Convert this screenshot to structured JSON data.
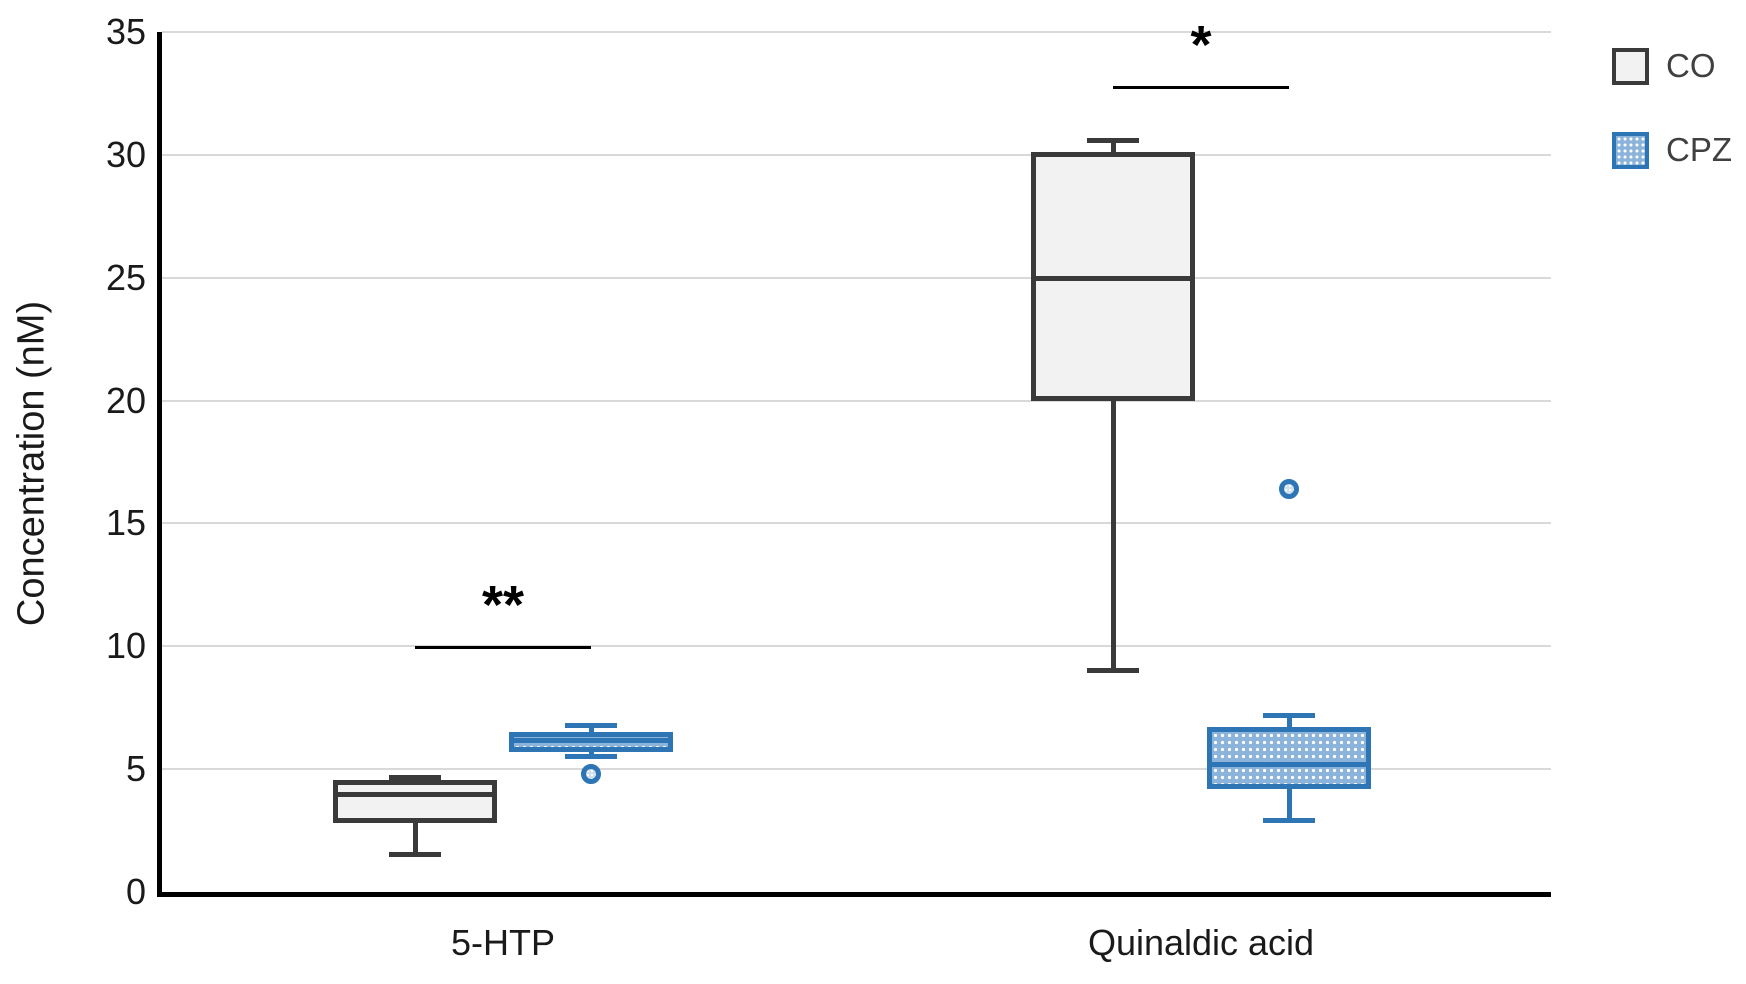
{
  "figure": {
    "colors": {
      "co_fill": "#f2f2f2",
      "co_border": "#3a3a3a",
      "cpz_fill": "#8cb3d9",
      "cpz_border": "#2e75b6",
      "gridline": "#d9d9d9",
      "axis_line": "#000000",
      "tick_text": "#1a1a1a",
      "legend_text": "#404040",
      "significance_text": "#000000"
    },
    "legend": {
      "items": [
        {
          "label": "CO",
          "style": "co"
        },
        {
          "label": "CPZ",
          "style": "cpz"
        }
      ]
    }
  },
  "chart_data": {
    "type": "boxplot",
    "title": "",
    "xlabel": "",
    "ylabel": "Concentration (nM)",
    "ylim": [
      0,
      35
    ],
    "y_ticks": [
      0,
      5,
      10,
      15,
      20,
      25,
      30,
      35
    ],
    "grid": true,
    "legend_position": "top-right",
    "categories": [
      "5-HTP",
      "Quinaldic acid"
    ],
    "series": [
      {
        "name": "CO",
        "style": "co",
        "boxes": [
          {
            "category": "5-HTP",
            "whisker_low": 1.5,
            "q1": 2.8,
            "median": 4.0,
            "q3": 4.55,
            "whisker_high": 4.7,
            "outliers": []
          },
          {
            "category": "Quinaldic acid",
            "whisker_low": 9.0,
            "q1": 20.0,
            "median": 25.0,
            "q3": 30.1,
            "whisker_high": 30.6,
            "outliers": []
          }
        ]
      },
      {
        "name": "CPZ",
        "style": "cpz",
        "boxes": [
          {
            "category": "5-HTP",
            "whisker_low": 5.5,
            "q1": 5.7,
            "median": 6.2,
            "q3": 6.5,
            "whisker_high": 6.8,
            "outliers": [
              4.8
            ]
          },
          {
            "category": "Quinaldic acid",
            "whisker_low": 2.9,
            "q1": 4.2,
            "median": 5.2,
            "q3": 6.7,
            "whisker_high": 7.2,
            "outliers": [
              16.4
            ]
          }
        ]
      }
    ],
    "annotations": [
      {
        "text": "**",
        "category": "5-HTP",
        "bar_y": 10.0
      },
      {
        "text": "*",
        "category": "Quinaldic acid",
        "bar_y": 32.8
      }
    ]
  }
}
